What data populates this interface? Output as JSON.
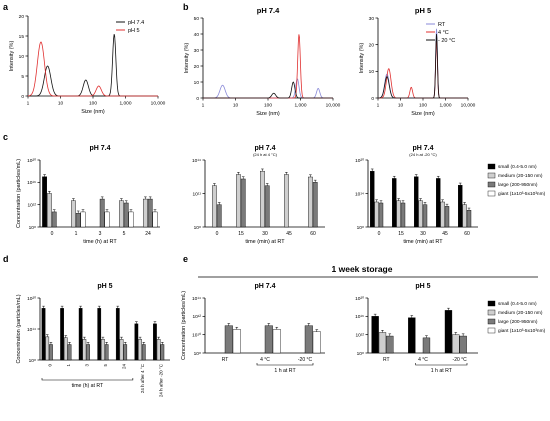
{
  "figure": {
    "panel_letters": [
      "a",
      "b",
      "c",
      "d",
      "e"
    ],
    "storage_banner": "1 week storage",
    "legend_c": [
      "small (0.4-5.0 nm)",
      "medium (20-150 nm)",
      "large (200-950nm)",
      "giant (1x10³-5x10³nm)"
    ],
    "colors": {
      "black": "#000000",
      "light": "#cfcfcf",
      "dark": "#7a7a7a",
      "white": "#ffffff",
      "ph74": "#1f1f7a",
      "ph5": "#e03030",
      "rt": "#8a8ad8",
      "c4": "#e03030",
      "c20": "#101010"
    }
  },
  "chart_data": [
    {
      "id": "a",
      "type": "line",
      "title": "",
      "xlabel": "Size (nm)",
      "ylabel": "Intensity (%)",
      "x_scale": "log",
      "xlim": [
        1,
        10000
      ],
      "ylim": [
        0,
        20
      ],
      "x_ticks": [
        "1",
        "10",
        "100",
        "1,000",
        "10,000"
      ],
      "y_ticks": [
        "0",
        "5",
        "10",
        "15",
        "20"
      ],
      "legend": [
        "pH 7.4",
        "pH 5"
      ],
      "series": [
        {
          "name": "pH 7.4",
          "color": "#111111",
          "peaks": [
            {
              "x": 4,
              "y": 7.5,
              "w": 0.1
            },
            {
              "x": 60,
              "y": 4,
              "w": 0.08
            },
            {
              "x": 450,
              "y": 15.5,
              "w": 0.05
            }
          ]
        },
        {
          "name": "pH 5",
          "color": "#e03030",
          "peaks": [
            {
              "x": 2.5,
              "y": 13.5,
              "w": 0.11
            },
            {
              "x": 150,
              "y": 2.5,
              "w": 0.08
            }
          ]
        }
      ]
    },
    {
      "id": "b1",
      "type": "line",
      "title": "pH 7.4",
      "xlabel": "Size (nm)",
      "ylabel": "Intensity (%)",
      "x_scale": "log",
      "xlim": [
        1,
        10000
      ],
      "ylim": [
        0,
        50
      ],
      "x_ticks": [
        "1",
        "10",
        "100",
        "1,000",
        "10,000"
      ],
      "y_ticks": [
        "0",
        "10",
        "20",
        "30",
        "40",
        "50"
      ],
      "series": [
        {
          "name": "RT",
          "color": "#8a8ad8",
          "peaks": [
            {
              "x": 4,
              "y": 8,
              "w": 0.08
            },
            {
              "x": 800,
              "y": 12,
              "w": 0.05
            },
            {
              "x": 3500,
              "y": 6,
              "w": 0.05
            }
          ]
        },
        {
          "name": "4 °C",
          "color": "#e03030",
          "peaks": [
            {
              "x": 900,
              "y": 40,
              "w": 0.04
            }
          ]
        },
        {
          "name": "- 20 °C",
          "color": "#101010",
          "peaks": [
            {
              "x": 150,
              "y": 3,
              "w": 0.06
            },
            {
              "x": 600,
              "y": 10,
              "w": 0.05
            }
          ]
        }
      ]
    },
    {
      "id": "b2",
      "type": "line",
      "title": "pH 5",
      "xlabel": "Size (nm)",
      "ylabel": "Intensity (%)",
      "x_scale": "log",
      "xlim": [
        1,
        10000
      ],
      "ylim": [
        0,
        30
      ],
      "x_ticks": [
        "1",
        "10",
        "100",
        "1,000",
        "10,000"
      ],
      "y_ticks": [
        "0",
        "10",
        "20",
        "30"
      ],
      "legend": [
        "RT",
        "4 °C",
        "- 20 °C"
      ],
      "series": [
        {
          "name": "RT",
          "color": "#8a8ad8",
          "peaks": [
            {
              "x": 2.5,
              "y": 9,
              "w": 0.1
            },
            {
              "x": 400,
              "y": 26,
              "w": 0.04
            }
          ]
        },
        {
          "name": "4 °C",
          "color": "#e03030",
          "peaks": [
            {
              "x": 3,
              "y": 11,
              "w": 0.1
            },
            {
              "x": 30,
              "y": 4,
              "w": 0.06
            },
            {
              "x": 400,
              "y": 22,
              "w": 0.04
            }
          ]
        },
        {
          "name": "- 20 °C",
          "color": "#101010",
          "peaks": [
            {
              "x": 2.5,
              "y": 8,
              "w": 0.1
            },
            {
              "x": 400,
              "y": 24,
              "w": 0.04
            }
          ]
        }
      ]
    },
    {
      "id": "c1",
      "type": "bar",
      "title": "pH 7.4",
      "xlabel": "time (h) at RT",
      "ylabel": "Concentration (particles/mL)",
      "y_scale": "log",
      "ylim_exp": [
        8,
        20
      ],
      "y_ticks": [
        "10⁸",
        "10¹²",
        "10¹⁶",
        "10²⁰"
      ],
      "categories": [
        "0",
        "1",
        "3",
        "5",
        "24"
      ],
      "series": [
        {
          "name": "small (0.4-5.0 nm)",
          "values": [
            1e+17,
            null,
            null,
            null,
            null
          ]
        },
        {
          "name": "medium (20-150 nm)",
          "values": [
            100000000000000.0,
            5000000000000.0,
            null,
            5000000000000.0,
            10000000000000.0
          ]
        },
        {
          "name": "large (200-950nm)",
          "values": [
            50000000000.0,
            30000000000.0,
            10000000000000.0,
            2000000000000.0,
            10000000000000.0
          ]
        },
        {
          "name": "giant (1x10³-5x10³nm)",
          "values": [
            null,
            50000000000.0,
            50000000000.0,
            50000000000.0,
            50000000000.0
          ]
        }
      ]
    },
    {
      "id": "c2",
      "type": "bar",
      "title": "pH 7.4",
      "subtitle": "(24 h at 4 °C)",
      "xlabel": "time (min) at RT",
      "ylabel": "",
      "y_scale": "log",
      "ylim_exp": [
        8,
        14
      ],
      "y_ticks": [
        "10⁸",
        "10¹¹",
        "10¹⁴"
      ],
      "categories": [
        "0",
        "15",
        "30",
        "45",
        "60"
      ],
      "series": [
        {
          "name": "small (0.4-5.0 nm)",
          "values": [
            null,
            null,
            null,
            null,
            null
          ]
        },
        {
          "name": "medium (20-150 nm)",
          "values": [
            500000000000.0,
            5000000000000.0,
            10000000000000.0,
            5000000000000.0,
            3000000000000.0
          ]
        },
        {
          "name": "large (200-950nm)",
          "values": [
            10000000000.0,
            2000000000000.0,
            500000000000.0,
            null,
            1000000000000.0
          ]
        },
        {
          "name": "giant (1x10³-5x10³nm)",
          "values": [
            null,
            null,
            null,
            null,
            null
          ]
        }
      ]
    },
    {
      "id": "c3",
      "type": "bar",
      "title": "pH 7.4",
      "subtitle": "(24 h at -20 °C)",
      "xlabel": "time (min) at RT",
      "ylabel": "",
      "y_scale": "log",
      "ylim_exp": [
        8,
        20
      ],
      "y_ticks": [
        "10⁸",
        "10¹⁴",
        "10²⁰"
      ],
      "categories": [
        "0",
        "15",
        "30",
        "45",
        "60"
      ],
      "series": [
        {
          "name": "small (0.4-5.0 nm)",
          "values": [
            1e+18,
            5e+16,
            1e+17,
            5e+16,
            3000000000000000.0
          ]
        },
        {
          "name": "medium (20-150 nm)",
          "values": [
            3000000000000.0,
            5000000000000.0,
            5000000000000.0,
            3000000000000.0,
            1000000000000.0
          ]
        },
        {
          "name": "large (200-950nm)",
          "values": [
            2000000000000.0,
            2000000000000.0,
            1000000000000.0,
            500000000000.0,
            100000000000.0
          ]
        },
        {
          "name": "giant (1x10³-5x10³nm)",
          "values": [
            null,
            null,
            null,
            null,
            null
          ]
        }
      ]
    },
    {
      "id": "d",
      "type": "bar",
      "title": "pH 5",
      "xlabel": "time (h) at RT",
      "ylabel": "Concentration (particles/mL)",
      "y_scale": "log",
      "ylim_exp": [
        8,
        20
      ],
      "y_ticks": [
        "10⁸",
        "10¹⁴",
        "10²⁰"
      ],
      "categories": [
        "0",
        "1",
        "3",
        "5",
        "24",
        "24 h after 4 °C",
        "24 h after -20 °C"
      ],
      "series": [
        {
          "name": "small (0.4-5.0 nm)",
          "values": [
            1e+18,
            1e+18,
            1e+18,
            1e+18,
            1e+18,
            1000000000000000.0,
            1000000000000000.0
          ]
        },
        {
          "name": "medium (20-150 nm)",
          "values": [
            3000000000000.0,
            2000000000000.0,
            1000000000000.0,
            1000000000000.0,
            1000000000000.0,
            1000000000000.0,
            1000000000000.0
          ]
        },
        {
          "name": "large (200-950nm)",
          "values": [
            100000000000.0,
            100000000000.0,
            100000000000.0,
            100000000000.0,
            100000000000.0,
            100000000000.0,
            100000000000.0
          ]
        },
        {
          "name": "giant (1x10³-5x10³nm)",
          "values": [
            null,
            null,
            null,
            null,
            null,
            null,
            null
          ]
        }
      ]
    },
    {
      "id": "e1",
      "type": "bar",
      "title": "pH 7.4",
      "xlabel": "1 h at RT",
      "ylabel": "Concentration (particles/mL)",
      "y_scale": "log",
      "ylim_exp": [
        8,
        15
      ],
      "y_ticks": [
        "10⁸",
        "10¹⁰",
        "10¹²",
        "10¹⁴"
      ],
      "categories": [
        "RT",
        "4 °C",
        "-20 °C"
      ],
      "series": [
        {
          "name": "small (0.4-5.0 nm)",
          "values": [
            null,
            null,
            null
          ]
        },
        {
          "name": "medium (20-150 nm)",
          "values": [
            null,
            null,
            null
          ]
        },
        {
          "name": "large (200-950nm)",
          "values": [
            300000000000.0,
            300000000000.0,
            300000000000.0
          ]
        },
        {
          "name": "giant (1x10³-5x10³nm)",
          "values": [
            100000000000.0,
            100000000000.0,
            50000000000.0
          ]
        }
      ]
    },
    {
      "id": "e2",
      "type": "bar",
      "title": "pH 5",
      "xlabel": "1 h at RT",
      "ylabel": "",
      "y_scale": "log",
      "ylim_exp": [
        8,
        20
      ],
      "y_ticks": [
        "10⁸",
        "10¹²",
        "10¹⁶",
        "10²⁰"
      ],
      "categories": [
        "RT",
        "4 °C",
        "-20 °C"
      ],
      "series": [
        {
          "name": "small (0.4-5.0 nm)",
          "values": [
            1e+16,
            5000000000000000.0,
            2e+17
          ]
        },
        {
          "name": "medium (20-150 nm)",
          "values": [
            3000000000000.0,
            null,
            1000000000000.0
          ]
        },
        {
          "name": "large (200-950nm)",
          "values": [
            500000000000.0,
            200000000000.0,
            500000000000.0
          ]
        },
        {
          "name": "giant (1x10³-5x10³nm)",
          "values": [
            null,
            null,
            null
          ]
        }
      ]
    }
  ]
}
